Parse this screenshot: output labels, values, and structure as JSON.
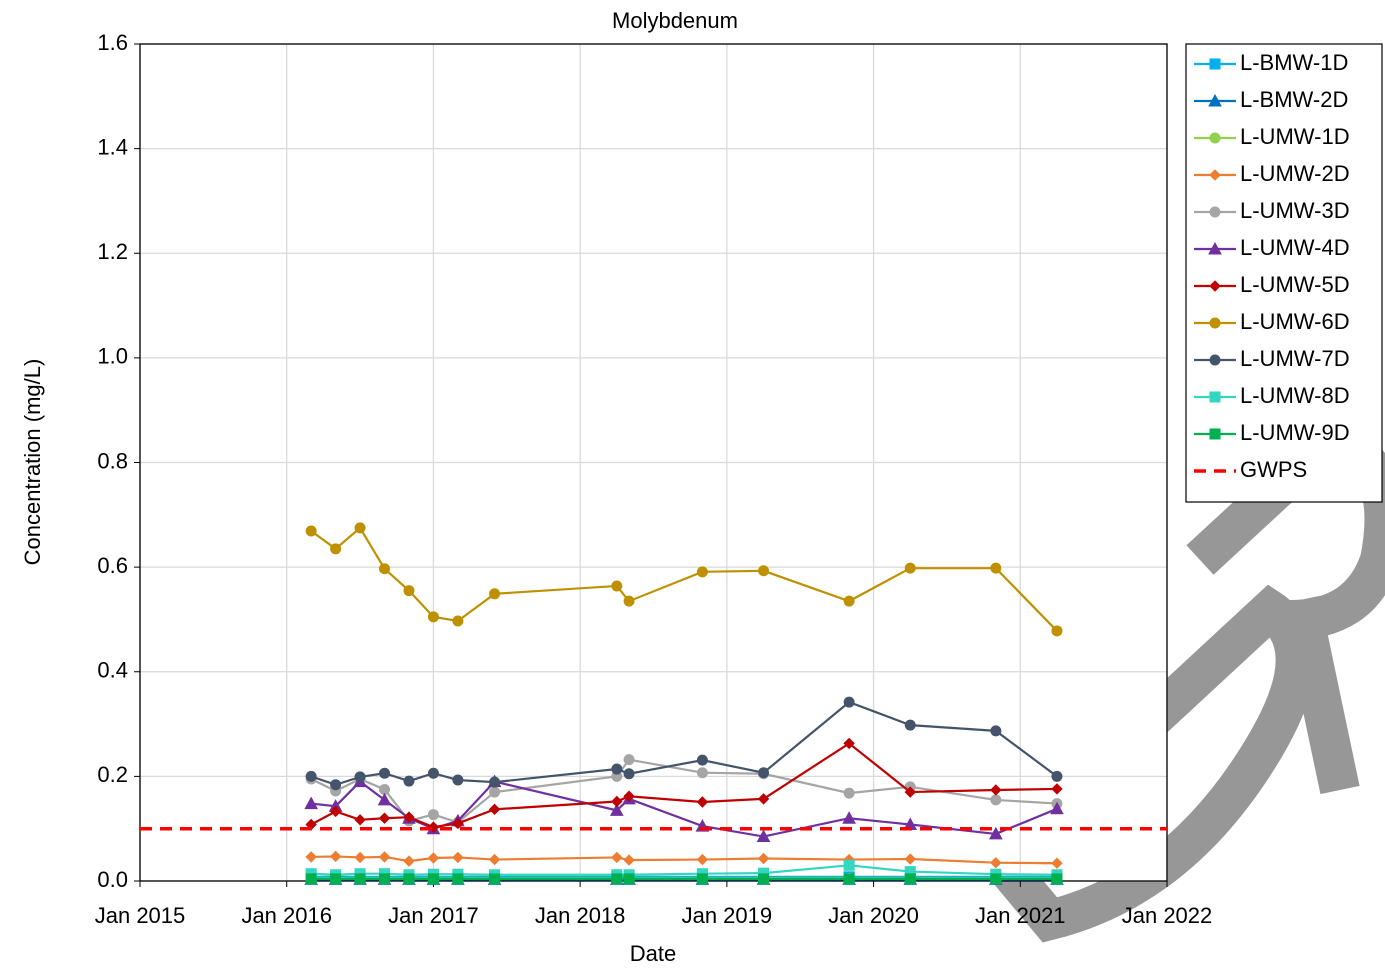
{
  "chart_data": {
    "type": "line",
    "title": "Molybdenum",
    "xlabel": "Date",
    "ylabel": "Concentration (mg/L)",
    "x": [
      "2016-03",
      "2016-05",
      "2016-07",
      "2016-09",
      "2016-11",
      "2017-01",
      "2017-03",
      "2017-06",
      "2018-04",
      "2018-05",
      "2018-11",
      "2019-04",
      "2019-11",
      "2020-04",
      "2020-11",
      "2021-04"
    ],
    "xlim": [
      "2015-01",
      "2022-01"
    ],
    "xticks": [
      {
        "value": "2015-01",
        "label": "Jan 2015"
      },
      {
        "value": "2016-01",
        "label": "Jan 2016"
      },
      {
        "value": "2017-01",
        "label": "Jan 2017"
      },
      {
        "value": "2018-01",
        "label": "Jan 2018"
      },
      {
        "value": "2019-01",
        "label": "Jan 2019"
      },
      {
        "value": "2020-01",
        "label": "Jan 2020"
      },
      {
        "value": "2021-01",
        "label": "Jan 2021"
      },
      {
        "value": "2022-01",
        "label": "Jan 2022"
      }
    ],
    "ylim": [
      0,
      1.6
    ],
    "yticks": [
      {
        "value": 0,
        "label": "0.0"
      },
      0.2,
      0.4,
      0.6,
      0.8,
      {
        "value": 1,
        "label": "1.0"
      },
      1.2,
      1.4,
      1.6
    ],
    "grid": true,
    "legend": "right",
    "series": [
      {
        "name": "L-BMW-1D",
        "color": "#00b0f0",
        "marker": "square",
        "values": [
          0.008,
          0.008,
          0.008,
          0.008,
          0.008,
          0.008,
          0.008,
          0.008,
          0.008,
          0.008,
          0.008,
          0.008,
          0.008,
          0.008,
          0.008,
          0.008
        ]
      },
      {
        "name": "L-BMW-2D",
        "color": "#0070c0",
        "marker": "triangle",
        "values": [
          0.003,
          0.003,
          0.003,
          0.003,
          0.003,
          0.003,
          0.003,
          0.003,
          0.003,
          0.003,
          0.003,
          0.003,
          0.003,
          0.003,
          0.003,
          0.003
        ]
      },
      {
        "name": "L-UMW-1D",
        "color": "#92d050",
        "marker": "circle",
        "values": [
          0.005,
          0.005,
          0.005,
          0.005,
          0.005,
          0.005,
          0.005,
          0.005,
          0.005,
          0.005,
          0.005,
          0.005,
          0.005,
          0.005,
          0.005,
          0.005
        ]
      },
      {
        "name": "L-UMW-2D",
        "color": "#ed7d31",
        "marker": "diamond",
        "values": [
          0.046,
          0.047,
          0.045,
          0.046,
          0.038,
          0.044,
          0.045,
          0.041,
          0.045,
          0.04,
          0.041,
          0.043,
          0.041,
          0.042,
          0.035,
          0.034
        ]
      },
      {
        "name": "L-UMW-3D",
        "color": "#a5a5a5",
        "marker": "circle",
        "values": [
          0.195,
          0.172,
          0.195,
          0.175,
          0.115,
          0.127,
          0.112,
          0.17,
          0.2,
          0.232,
          0.207,
          0.205,
          0.168,
          0.18,
          0.155,
          0.148
        ]
      },
      {
        "name": "L-UMW-4D",
        "color": "#7030a0",
        "marker": "triangle",
        "values": [
          0.148,
          0.143,
          0.19,
          0.155,
          0.12,
          0.1,
          0.115,
          0.19,
          0.135,
          0.157,
          0.105,
          0.085,
          0.12,
          0.108,
          0.09,
          0.138
        ]
      },
      {
        "name": "L-UMW-5D",
        "color": "#c00000",
        "marker": "diamond",
        "values": [
          0.108,
          0.133,
          0.117,
          0.12,
          0.122,
          0.103,
          0.11,
          0.137,
          0.152,
          0.162,
          0.151,
          0.157,
          0.263,
          0.17,
          0.174,
          0.176
        ]
      },
      {
        "name": "L-UMW-6D",
        "color": "#bf9000",
        "marker": "circle",
        "values": [
          0.669,
          0.635,
          0.675,
          0.597,
          0.555,
          0.505,
          0.497,
          0.549,
          0.564,
          0.535,
          0.591,
          0.593,
          0.535,
          0.598,
          0.598,
          0.478
        ]
      },
      {
        "name": "L-UMW-7D",
        "color": "#44546a",
        "marker": "circle",
        "values": [
          0.2,
          0.184,
          0.199,
          0.206,
          0.191,
          0.206,
          0.193,
          0.189,
          0.214,
          0.205,
          0.231,
          0.207,
          0.342,
          0.298,
          0.287,
          0.2
        ]
      },
      {
        "name": "L-UMW-8D",
        "color": "#33d6c0",
        "marker": "square",
        "values": [
          0.014,
          0.012,
          0.014,
          0.014,
          0.012,
          0.013,
          0.013,
          0.012,
          0.012,
          0.012,
          0.014,
          0.015,
          0.03,
          0.018,
          0.013,
          0.012
        ]
      },
      {
        "name": "L-UMW-9D",
        "color": "#00b050",
        "marker": "square",
        "values": [
          0.004,
          0.004,
          0.004,
          0.004,
          0.004,
          0.004,
          0.004,
          0.004,
          0.004,
          0.004,
          0.004,
          0.004,
          0.004,
          0.004,
          0.004,
          0.004
        ]
      }
    ],
    "reference_lines": [
      {
        "name": "GWPS",
        "value": 0.1,
        "color": "#ff0000"
      }
    ]
  }
}
